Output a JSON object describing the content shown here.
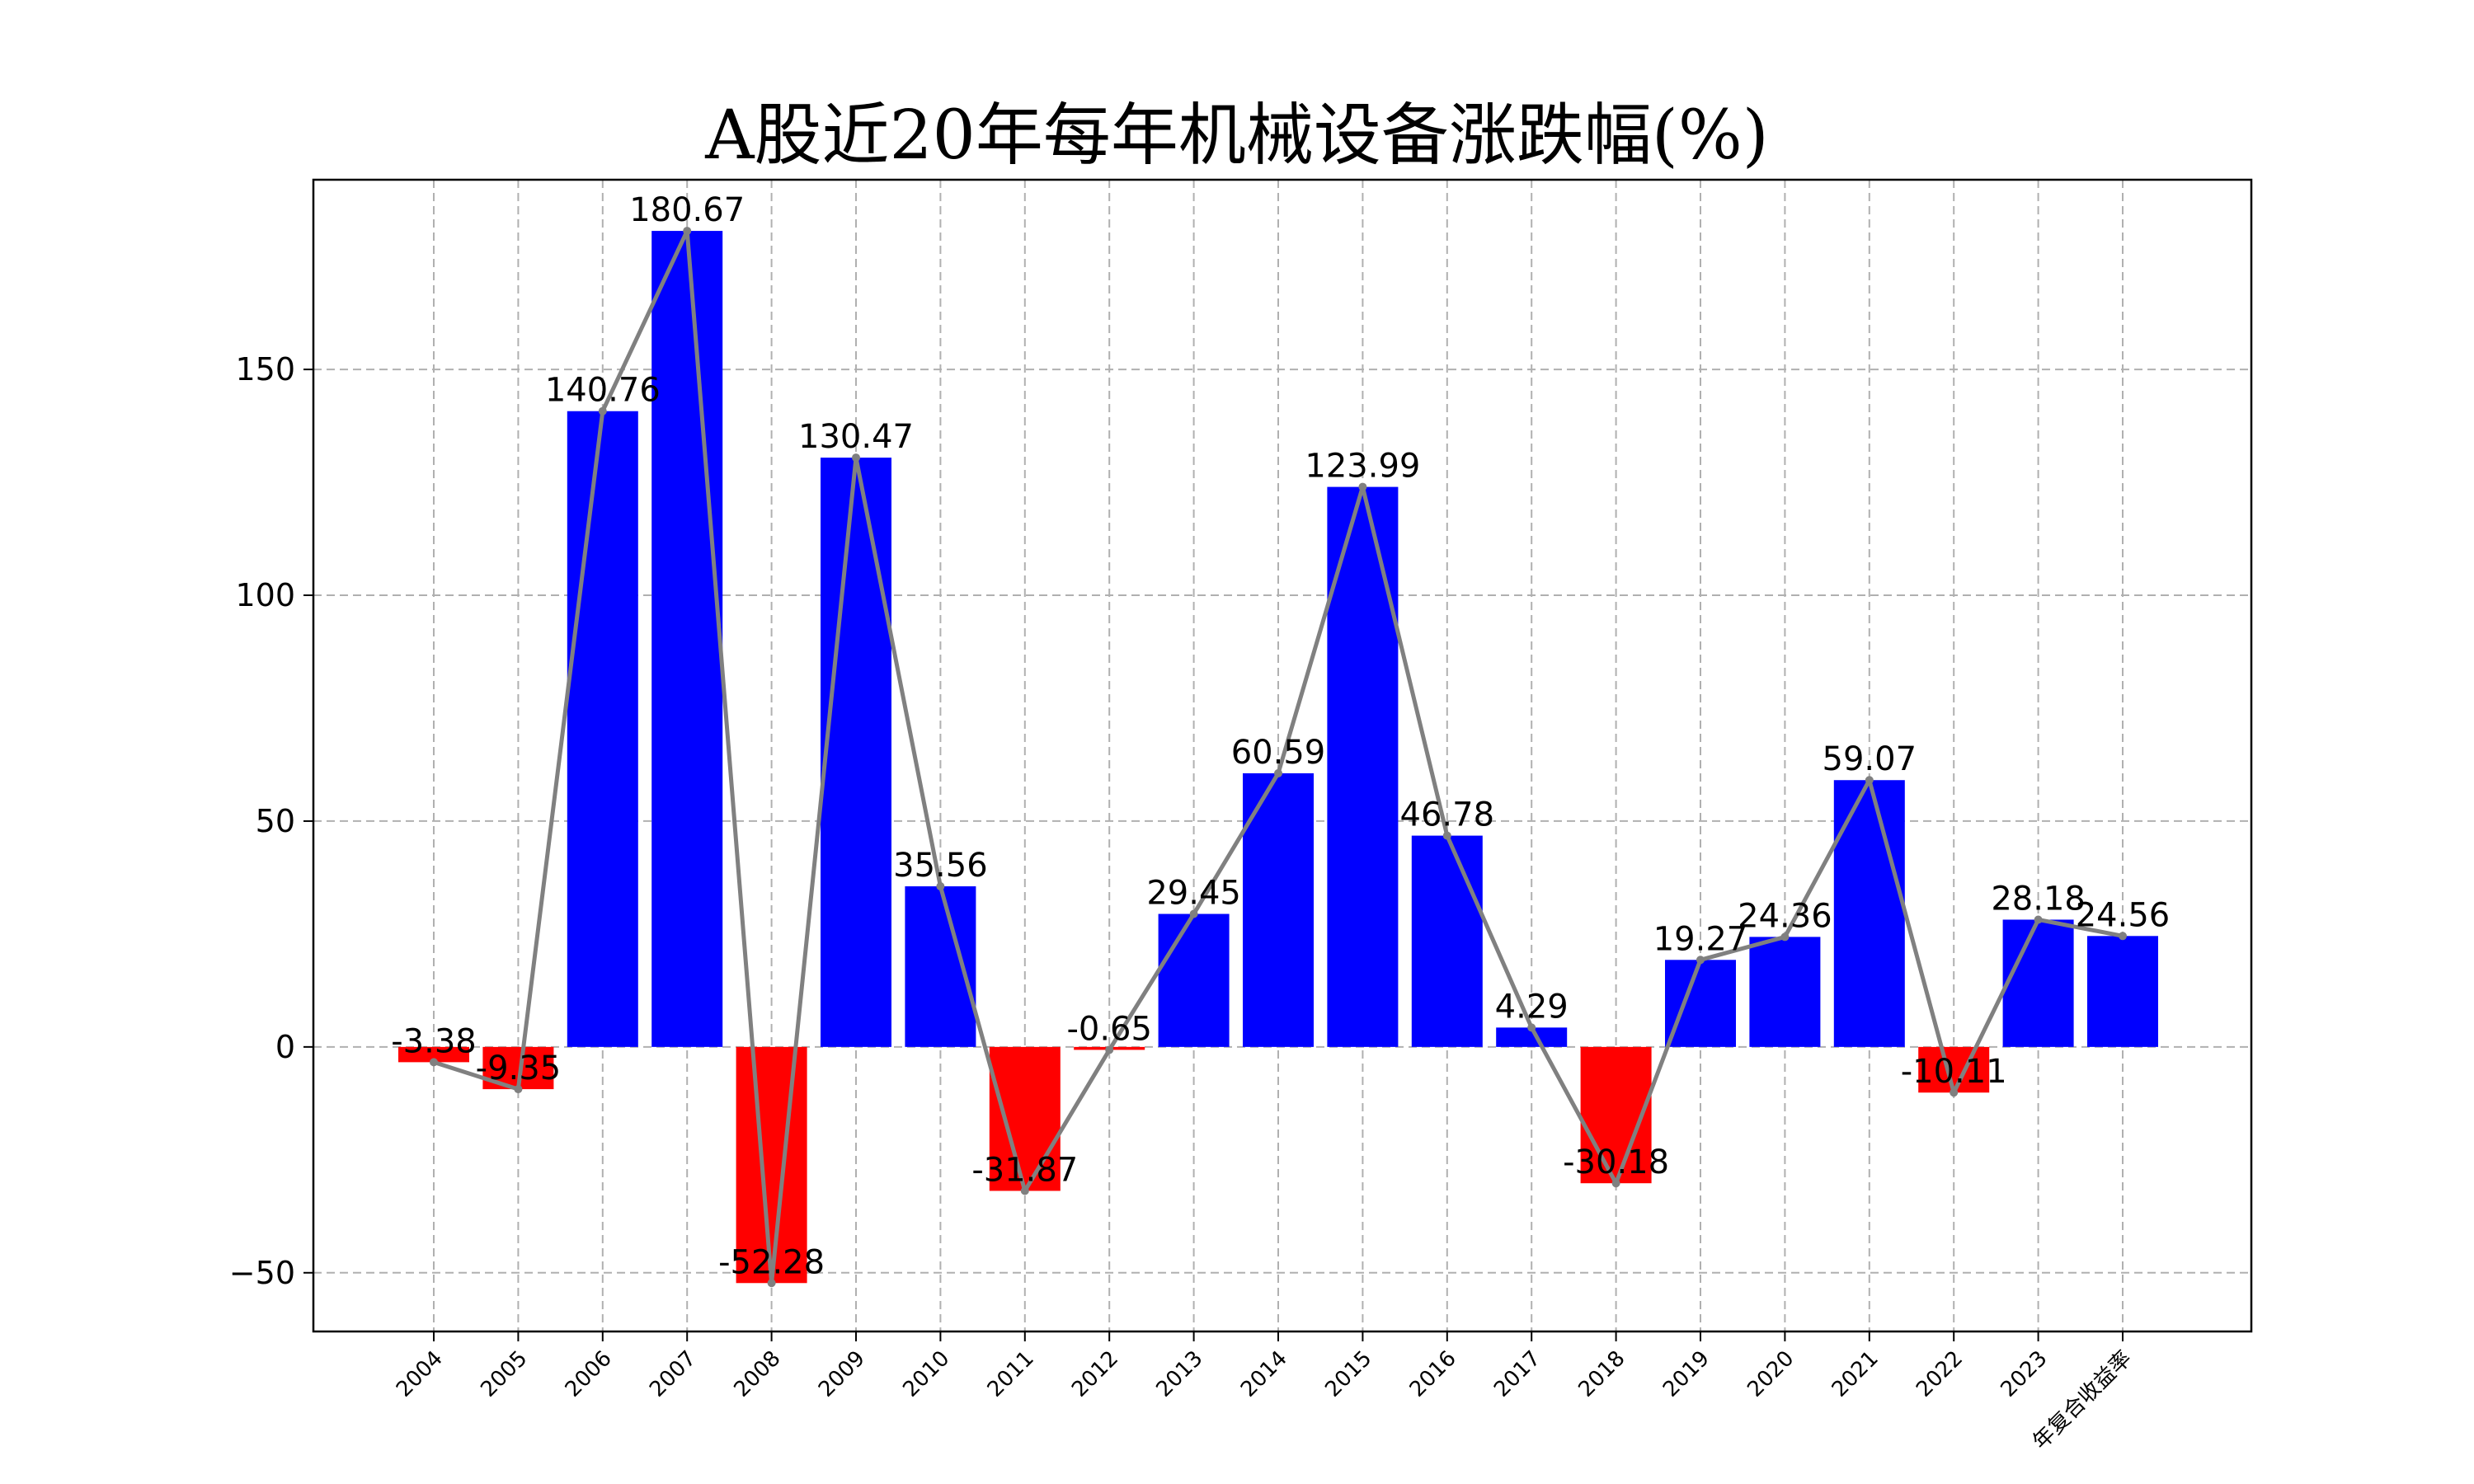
{
  "chart_data": {
    "type": "bar",
    "title": "A股近20年每年机械设备涨跌幅(%)",
    "xlabel": "",
    "ylabel": "",
    "categories": [
      "2004",
      "2005",
      "2006",
      "2007",
      "2008",
      "2009",
      "2010",
      "2011",
      "2012",
      "2013",
      "2014",
      "2015",
      "2016",
      "2017",
      "2018",
      "2019",
      "2020",
      "2021",
      "2022",
      "2023",
      "年复合收益率"
    ],
    "values": [
      -3.38,
      -9.35,
      140.76,
      180.67,
      -52.28,
      130.47,
      35.56,
      -31.87,
      -0.65,
      29.45,
      60.59,
      123.99,
      46.78,
      4.29,
      -30.18,
      19.27,
      24.36,
      59.07,
      -10.11,
      28.18,
      24.56
    ],
    "value_labels": [
      "-3.38",
      "-9.35",
      "140.76",
      "180.67",
      "-52.28",
      "130.47",
      "35.56",
      "-31.87",
      "-0.65",
      "29.45",
      "60.59",
      "123.99",
      "46.78",
      "4.29",
      "-30.18",
      "19.27",
      "24.36",
      "59.07",
      "-10.11",
      "28.18",
      "24.56"
    ],
    "overlay_line": true,
    "ylim": [
      -63,
      192
    ],
    "yticks": [
      -50,
      0,
      50,
      100,
      150
    ],
    "ytick_labels": [
      "−50",
      "0",
      "50",
      "100",
      "150"
    ],
    "grid": true,
    "colors": {
      "positive": "#0000ff",
      "negative": "#ff0000",
      "line": "#808080"
    }
  }
}
